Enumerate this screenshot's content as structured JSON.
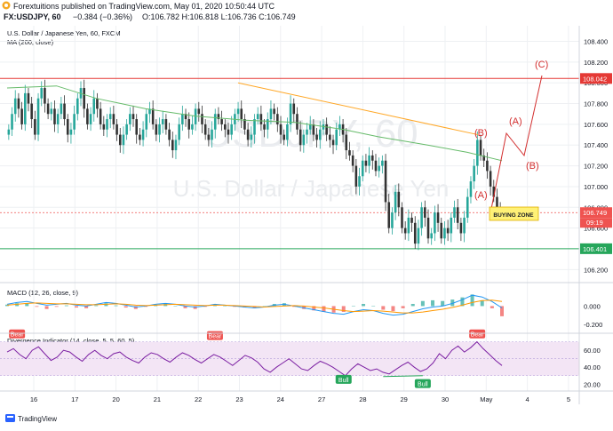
{
  "header": {
    "published_line": "Forextuitions published on TradingView.com, May 01, 2020 10:50:44 UTC",
    "symbol_line_symbol": "FX:USDJPY, 60",
    "symbol_line_change": "−0.384 (−0.36%)",
    "symbol_line_ohlc": "O:106.782 H:106.818 L:106.736 C:106.749"
  },
  "chart_data": [
    {
      "type": "line",
      "panel": "price",
      "title": "U.S. Dollar / Japanese Yen, 60, FXCM",
      "series_label": "MA (200, close)",
      "watermark": {
        "symbol": "USDJPY, 60",
        "name": "U.S. Dollar / Japanese Yen"
      },
      "ylim": [
        106.1,
        108.55
      ],
      "yticks": [
        "108.400",
        "108.200",
        "108.000",
        "107.800",
        "107.600",
        "107.400",
        "107.200",
        "107.000",
        "106.800",
        "106.600",
        "106.400",
        "106.200"
      ],
      "xticks": [
        "16",
        "17",
        "20",
        "21",
        "22",
        "23",
        "24",
        "27",
        "28",
        "29",
        "30",
        "May",
        "4",
        "5"
      ],
      "price_labels": [
        {
          "value": 108.042,
          "label": "108.042",
          "color": "#e53935"
        },
        {
          "value": 106.749,
          "label": "106.749",
          "color": "#ef5350",
          "sub": "09:19"
        },
        {
          "value": 106.401,
          "label": "106.401",
          "color": "#26a65b"
        }
      ],
      "candles_close": [
        107.55,
        107.7,
        107.85,
        107.75,
        107.6,
        107.9,
        107.8,
        107.65,
        107.5,
        107.85,
        107.95,
        107.8,
        107.7,
        107.75,
        107.6,
        107.7,
        107.8,
        107.65,
        107.5,
        107.55,
        107.7,
        107.85,
        107.95,
        107.75,
        107.6,
        107.7,
        107.85,
        107.75,
        107.6,
        107.55,
        107.65,
        107.7,
        107.6,
        107.5,
        107.4,
        107.5,
        107.6,
        107.7,
        107.65,
        107.5,
        107.45,
        107.55,
        107.7,
        107.75,
        107.6,
        107.5,
        107.6,
        107.65,
        107.55,
        107.45,
        107.35,
        107.45,
        107.6,
        107.7,
        107.65,
        107.55,
        107.6,
        107.75,
        107.7,
        107.6,
        107.5,
        107.45,
        107.55,
        107.7,
        107.65,
        107.6,
        107.55,
        107.5,
        107.6,
        107.7,
        107.75,
        107.65,
        107.55,
        107.45,
        107.5,
        107.65,
        107.7,
        107.6,
        107.55,
        107.65,
        107.75,
        107.7,
        107.6,
        107.5,
        107.45,
        107.6,
        107.8,
        107.7,
        107.55,
        107.4,
        107.5,
        107.55,
        107.6,
        107.5,
        107.45,
        107.55,
        107.6,
        107.5,
        107.45,
        107.4,
        107.55,
        107.6,
        107.5,
        107.35,
        107.3,
        107.2,
        107.0,
        107.1,
        107.25,
        107.2,
        107.3,
        107.25,
        107.15,
        107.2,
        107.25,
        106.85,
        106.6,
        106.75,
        106.95,
        106.8,
        106.6,
        106.55,
        106.7,
        106.65,
        106.45,
        106.6,
        106.8,
        106.7,
        106.5,
        106.55,
        106.75,
        106.65,
        106.5,
        106.6,
        106.55,
        106.7,
        106.8,
        106.65,
        106.55,
        106.7,
        106.9,
        107.05,
        107.2,
        107.45,
        107.3,
        107.25,
        107.15,
        107.0,
        106.9,
        106.8,
        106.75
      ],
      "ma200": [
        [
          0,
          107.95
        ],
        [
          0.1,
          107.97
        ],
        [
          0.18,
          107.85
        ],
        [
          0.28,
          107.75
        ],
        [
          0.38,
          107.68
        ],
        [
          0.48,
          107.64
        ],
        [
          0.58,
          107.62
        ],
        [
          0.68,
          107.55
        ],
        [
          0.75,
          107.48
        ],
        [
          0.85,
          107.4
        ],
        [
          0.93,
          107.33
        ],
        [
          1.0,
          107.25
        ]
      ],
      "drawings": {
        "trendline": [
          [
            108.0,
            0.0
          ],
          [
            107.5,
            1.0
          ]
        ],
        "waves": [
          "(A)",
          "(B)",
          "(A)",
          "(B)",
          "(C)"
        ],
        "zone_label": "BUYING ZONE"
      }
    },
    {
      "type": "line",
      "panel": "macd",
      "title": "MACD (12, 26, close, 9)",
      "yticks": [
        "0.000",
        "-0.200"
      ],
      "ylim": [
        -0.28,
        0.22
      ],
      "macd": [
        0.02,
        0.04,
        0.05,
        0.03,
        0.01,
        0.02,
        0.03,
        0.01,
        0.0,
        0.02,
        0.04,
        0.03,
        0.01,
        -0.01,
        0.0,
        0.02,
        0.03,
        0.02,
        0.0,
        -0.01,
        0.0,
        0.02,
        0.01,
        0.0,
        -0.01,
        -0.02,
        -0.01,
        0.01,
        0.02,
        0.0,
        -0.02,
        -0.04,
        -0.06,
        -0.08,
        -0.09,
        -0.06,
        -0.04,
        -0.05,
        -0.08,
        -0.1,
        -0.09,
        -0.06,
        -0.03,
        -0.01,
        0.0,
        0.03,
        0.07,
        0.12,
        0.1,
        0.05,
        -0.02
      ],
      "signal": [
        0.01,
        0.02,
        0.03,
        0.035,
        0.03,
        0.025,
        0.025,
        0.02,
        0.015,
        0.015,
        0.02,
        0.025,
        0.02,
        0.01,
        0.005,
        0.01,
        0.015,
        0.02,
        0.015,
        0.01,
        0.005,
        0.01,
        0.01,
        0.005,
        0.0,
        -0.005,
        -0.01,
        -0.005,
        0.0,
        0.005,
        0.0,
        -0.01,
        -0.02,
        -0.035,
        -0.05,
        -0.06,
        -0.055,
        -0.05,
        -0.055,
        -0.065,
        -0.075,
        -0.075,
        -0.065,
        -0.05,
        -0.035,
        -0.015,
        0.01,
        0.04,
        0.06,
        0.065,
        0.05
      ]
    },
    {
      "type": "line",
      "panel": "divergence",
      "title": "Divergence Indicator (14, close, 5, 5, 60, 5)",
      "yticks": [
        "60.00",
        "40.00",
        "20.00"
      ],
      "ylim": [
        14,
        78
      ],
      "rsi": [
        58,
        62,
        55,
        50,
        60,
        64,
        56,
        48,
        52,
        60,
        58,
        52,
        47,
        55,
        60,
        54,
        50,
        56,
        58,
        52,
        48,
        45,
        52,
        57,
        55,
        50,
        46,
        52,
        57,
        54,
        49,
        45,
        50,
        55,
        52,
        47,
        42,
        48,
        54,
        51,
        46,
        38,
        34,
        40,
        45,
        50,
        44,
        38,
        36,
        42,
        47,
        44,
        40,
        35,
        30,
        38,
        44,
        40,
        36,
        38,
        34,
        32,
        37,
        42,
        46,
        40,
        35,
        38,
        45,
        56,
        50,
        60,
        65,
        58,
        63,
        70,
        62,
        55,
        48,
        42
      ],
      "signals": [
        {
          "label": "Bear",
          "pos": 0.02,
          "value": 72
        },
        {
          "label": "Bear",
          "pos": 0.42,
          "value": 70
        },
        {
          "label": "Bear",
          "pos": 0.95,
          "value": 72
        },
        {
          "label": "Bull",
          "pos": 0.68,
          "value": 33
        },
        {
          "label": "Bull",
          "pos": 0.84,
          "value": 28
        }
      ]
    }
  ],
  "footer": {
    "brand": "TradingView"
  },
  "colors": {
    "bull": "#26a69a",
    "bear": "#333333",
    "ma": "#66bb6a",
    "trend": "#ffa726",
    "wave": "#d32f2f",
    "macd": "#2196f3",
    "signal": "#ff9800",
    "hist_pos": "#26a69a",
    "hist_neg": "#ef5350",
    "rsi": "#7b1fa2",
    "band": "#f3e5f5"
  }
}
